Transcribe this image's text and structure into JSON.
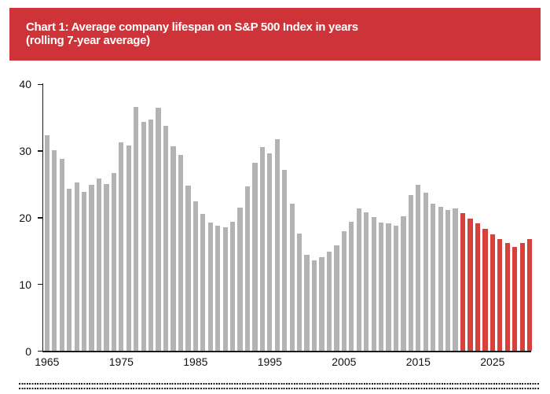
{
  "header": {
    "title_line1": "Chart 1: Average company lifespan on S&P 500 Index in years",
    "title_line2": "(rolling 7-year average)",
    "background_color": "#cd3338",
    "text_color": "#ffffff"
  },
  "chart_data": {
    "type": "bar",
    "title": "Chart 1: Average company lifespan on S&P 500 Index in years (rolling 7-year average)",
    "xlabel": "",
    "ylabel": "",
    "ylim": [
      0,
      40
    ],
    "yticks": [
      0,
      10,
      20,
      30,
      40
    ],
    "xticks": [
      1965,
      1975,
      1985,
      1995,
      2005,
      2015,
      2025
    ],
    "grid": false,
    "legend": false,
    "years": [
      1965,
      1966,
      1967,
      1968,
      1969,
      1970,
      1971,
      1972,
      1973,
      1974,
      1975,
      1976,
      1977,
      1978,
      1979,
      1980,
      1981,
      1982,
      1983,
      1984,
      1985,
      1986,
      1987,
      1988,
      1989,
      1990,
      1991,
      1992,
      1993,
      1994,
      1995,
      1996,
      1997,
      1998,
      1999,
      2000,
      2001,
      2002,
      2003,
      2004,
      2005,
      2006,
      2007,
      2008,
      2009,
      2010,
      2011,
      2012,
      2013,
      2014,
      2015,
      2016,
      2017,
      2018,
      2019,
      2020,
      2021,
      2022,
      2023,
      2024,
      2025,
      2026,
      2027,
      2028,
      2029,
      2030
    ],
    "values": [
      32.3,
      30.1,
      28.8,
      24.3,
      25.2,
      23.8,
      24.9,
      25.8,
      25.0,
      26.6,
      31.2,
      30.8,
      36.5,
      34.3,
      34.7,
      36.4,
      33.7,
      30.7,
      29.4,
      24.8,
      22.4,
      20.5,
      19.2,
      18.8,
      18.5,
      19.3,
      21.5,
      24.7,
      28.2,
      30.5,
      29.6,
      31.7,
      27.1,
      22.1,
      17.6,
      14.4,
      13.6,
      14.0,
      14.8,
      15.8,
      17.9,
      19.3,
      21.3,
      20.8,
      20.0,
      19.2,
      19.1,
      18.8,
      20.2,
      23.4,
      24.9,
      23.7,
      22.0,
      21.6,
      21.1,
      21.3,
      20.6,
      19.8,
      19.1,
      18.3,
      17.5,
      16.8,
      16.2,
      15.6,
      16.2,
      16.8
    ],
    "forecast_start_year": 2021,
    "series": [
      {
        "name": "historical",
        "color": "#b3b3b3"
      },
      {
        "name": "forecast",
        "color": "#d8403b"
      }
    ],
    "colors": {
      "historical_bar": "#b3b3b3",
      "forecast_bar": "#d8403b",
      "axis": "#1a1a1a"
    }
  },
  "footer": {
    "divider_style": "double dotted rule"
  }
}
